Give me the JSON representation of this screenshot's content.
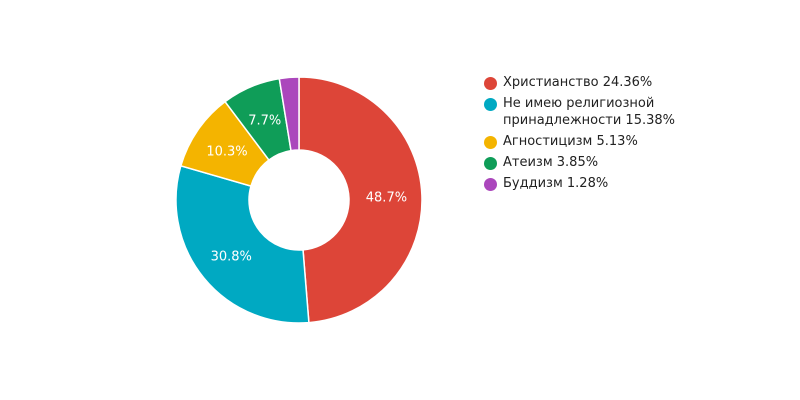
{
  "chart_data": {
    "type": "pie",
    "donut": true,
    "legend_position": "right",
    "categories": [
      "Христианство",
      "Не имею религиозной принадлежности",
      "Агностицизм",
      "Атеизм",
      "Буддизм"
    ],
    "values": [
      24.36,
      15.38,
      5.13,
      3.85,
      1.28
    ],
    "slice_labels": [
      "48.7%",
      "30.8%",
      "10.3%",
      "7.7%",
      ""
    ],
    "legend": [
      "Христианство 24.36%",
      "Не имею религиозной принадлежности 15.38%",
      "Агностицизм 5.13%",
      "Атеизм 3.85%",
      "Буддизм 1.28%"
    ],
    "colors": [
      "#dd4538",
      "#00a9c2",
      "#f4b400",
      "#0f9d58",
      "#ab47bc"
    ]
  }
}
